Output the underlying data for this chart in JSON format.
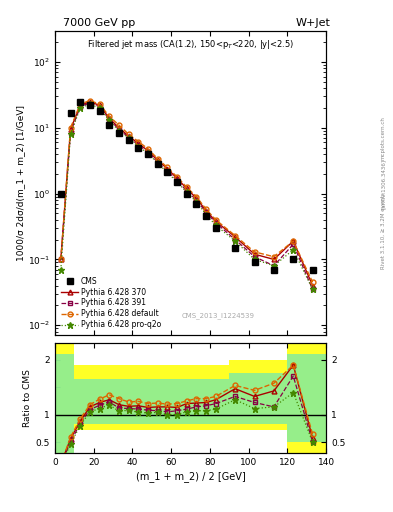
{
  "title_top": "7000 GeV pp",
  "title_top_right": "W+Jet",
  "plot_title": "Filtered jet mass (CA(1.2), 150<p$_T$<220, |y|<2.5)",
  "cms_label": "CMS_2013_I1224539",
  "rivet_label": "Rivet 3.1.10, ≥ 3.2M events",
  "arxiv_label": "[arXiv:1306.3436]",
  "mcplots_label": "mcplots.cern.ch",
  "xlabel": "(m_1 + m_2) / 2 [GeV]",
  "ylabel_main": "1000/σ 2dσ/d(m_1 + m_2) [1/GeV]",
  "ylabel_ratio": "Ratio to CMS",
  "x_data": [
    3,
    8,
    13,
    18,
    23,
    28,
    33,
    38,
    43,
    48,
    53,
    58,
    63,
    68,
    73,
    78,
    83,
    93,
    103,
    113,
    123,
    133
  ],
  "cms_data": [
    1.0,
    17.0,
    25.0,
    22.0,
    18.0,
    11.0,
    8.5,
    6.5,
    5.0,
    4.0,
    2.8,
    2.1,
    1.5,
    1.0,
    0.7,
    0.45,
    0.3,
    0.15,
    0.09,
    0.07,
    0.1,
    0.07
  ],
  "pythia370_data": [
    0.1,
    9.5,
    22.0,
    25.0,
    22.0,
    14.0,
    10.0,
    7.5,
    5.8,
    4.5,
    3.2,
    2.4,
    1.7,
    1.2,
    0.85,
    0.55,
    0.38,
    0.22,
    0.12,
    0.1,
    0.19,
    0.04
  ],
  "pythia391_data": [
    0.1,
    8.5,
    21.0,
    24.0,
    21.0,
    13.5,
    9.5,
    7.2,
    5.5,
    4.3,
    3.0,
    2.2,
    1.6,
    1.1,
    0.8,
    0.52,
    0.36,
    0.2,
    0.11,
    0.08,
    0.17,
    0.035
  ],
  "pythia_default_data": [
    0.1,
    10.0,
    23.0,
    26.0,
    23.0,
    15.0,
    11.0,
    8.0,
    6.2,
    4.8,
    3.4,
    2.5,
    1.8,
    1.25,
    0.9,
    0.58,
    0.4,
    0.23,
    0.13,
    0.11,
    0.19,
    0.045
  ],
  "pythia_proq2o_data": [
    0.07,
    8.0,
    20.0,
    23.0,
    20.0,
    13.0,
    9.0,
    7.0,
    5.2,
    4.1,
    2.9,
    2.1,
    1.5,
    1.05,
    0.75,
    0.48,
    0.33,
    0.19,
    0.1,
    0.08,
    0.14,
    0.035
  ],
  "ratio370": [
    0.1,
    0.56,
    0.88,
    1.14,
    1.22,
    1.27,
    1.18,
    1.15,
    1.16,
    1.13,
    1.14,
    1.14,
    1.13,
    1.2,
    1.21,
    1.22,
    1.27,
    1.47,
    1.33,
    1.43,
    1.9,
    0.57
  ],
  "ratio391": [
    0.1,
    0.5,
    0.84,
    1.09,
    1.17,
    1.23,
    1.12,
    1.11,
    1.1,
    1.08,
    1.07,
    1.05,
    1.07,
    1.1,
    1.14,
    1.16,
    1.2,
    1.33,
    1.22,
    1.14,
    1.7,
    0.5
  ],
  "ratio_default": [
    0.1,
    0.59,
    0.92,
    1.18,
    1.28,
    1.36,
    1.29,
    1.23,
    1.24,
    1.2,
    1.21,
    1.19,
    1.2,
    1.25,
    1.29,
    1.29,
    1.33,
    1.53,
    1.44,
    1.57,
    1.9,
    0.64
  ],
  "ratio_proq2o": [
    0.07,
    0.47,
    0.8,
    1.05,
    1.11,
    1.18,
    1.06,
    1.08,
    1.04,
    1.03,
    1.04,
    1.0,
    1.0,
    1.05,
    1.07,
    1.07,
    1.1,
    1.27,
    1.11,
    1.14,
    1.4,
    0.5
  ],
  "color_370": "#aa0000",
  "color_391": "#880044",
  "color_default": "#dd6600",
  "color_proq2o": "#448800",
  "color_cms": "black",
  "xlim": [
    0,
    140
  ],
  "ylim_main": [
    0.007,
    300
  ],
  "ylim_ratio": [
    0.3,
    2.3
  ]
}
